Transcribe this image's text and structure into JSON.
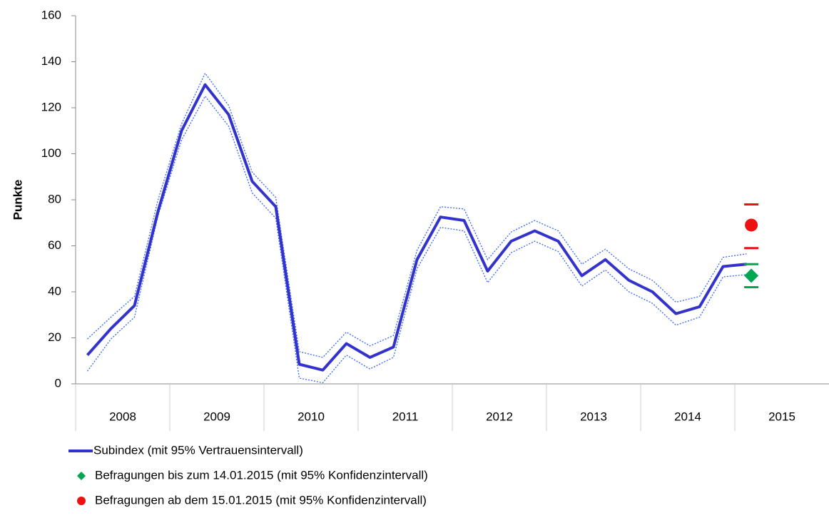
{
  "chart_data": {
    "type": "line",
    "y_label": "Punkte",
    "x": [
      2008,
      2008.25,
      2008.5,
      2008.75,
      2009,
      2009.25,
      2009.5,
      2009.75,
      2010,
      2010.25,
      2010.5,
      2010.75,
      2011,
      2011.25,
      2011.5,
      2011.75,
      2012,
      2012.25,
      2012.5,
      2012.75,
      2013,
      2013.25,
      2013.5,
      2013.75,
      2014,
      2014.25,
      2014.5,
      2014.75,
      2015
    ],
    "xlim": [
      2007.875,
      2015.875
    ],
    "xticks": [
      2008,
      2009,
      2010,
      2011,
      2012,
      2013,
      2014,
      2015
    ],
    "ylim": [
      0,
      160
    ],
    "yticks": [
      0,
      20,
      40,
      60,
      80,
      100,
      120,
      140,
      160
    ],
    "grid": false,
    "series": [
      {
        "name": "Subindex (mit 95% Vertrauensintervall)",
        "color": "#3333cc",
        "ci_color": "#3366ff",
        "values": [
          12.5,
          24,
          34,
          75,
          110,
          130,
          117,
          88,
          77,
          8.5,
          6,
          17.5,
          11.5,
          16,
          54,
          72.5,
          71,
          49,
          62,
          66.5,
          62,
          47,
          54,
          45,
          40,
          30.5,
          33.5,
          51,
          52
        ],
        "ci_upper": [
          19.5,
          29,
          38,
          80,
          113,
          135,
          121,
          92,
          81,
          14,
          11.5,
          22.5,
          16.5,
          21,
          58,
          77,
          76,
          54,
          66,
          71,
          66.5,
          52,
          58.5,
          50,
          45,
          35.5,
          38,
          55,
          56.5
        ],
        "ci_lower": [
          5.5,
          19.5,
          29,
          73,
          106,
          125,
          112,
          83,
          72,
          2.5,
          0.5,
          12.5,
          6.5,
          11.5,
          50,
          68,
          66.5,
          44,
          57,
          62,
          57.5,
          42.5,
          49.5,
          40,
          35,
          25.5,
          29,
          46.5,
          47.5
        ]
      },
      {
        "name": "Befragungen bis zum 14.01.2015 (mit 95% Konfidenzintervall)",
        "color": "#00a650",
        "marker": "diamond",
        "x": [
          2015.05
        ],
        "values": [
          47
        ],
        "ci_lower": [
          42
        ],
        "ci_upper": [
          52
        ]
      },
      {
        "name": "Befragungen ab dem 15.01.2015 (mit 95% Konfidenzintervall)",
        "color": "#ee1111",
        "marker": "circle",
        "x": [
          2015.05
        ],
        "values": [
          69
        ],
        "ci_lower": [
          59
        ],
        "ci_upper": [
          78
        ]
      }
    ]
  }
}
